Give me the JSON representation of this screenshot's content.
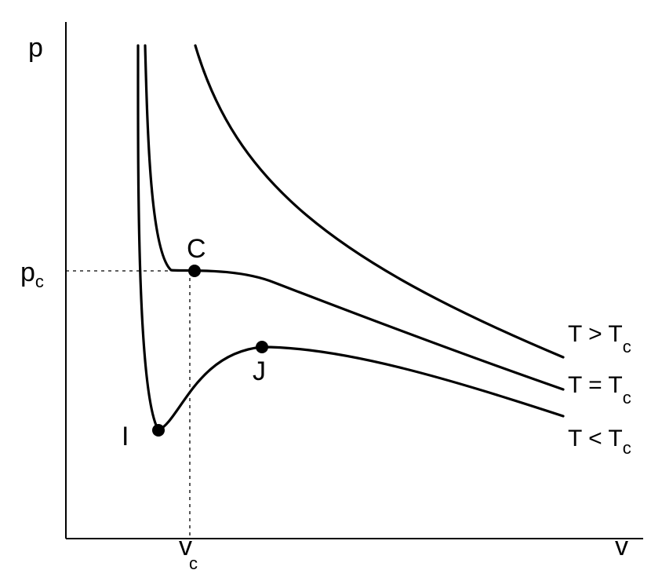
{
  "axes": {
    "y_label": "p",
    "x_label": "v",
    "pc_main": "p",
    "pc_sub": "c",
    "vc_main": "v",
    "vc_sub": "c"
  },
  "points": {
    "critical": "C",
    "minimum": "I",
    "maximum": "J"
  },
  "curves": {
    "above": {
      "main": "T > T",
      "sub": "c"
    },
    "critical": {
      "main": "T = T",
      "sub": "c"
    },
    "below": {
      "main": "T < T",
      "sub": "c"
    }
  },
  "colors": {
    "ink": "#000000",
    "background": "#ffffff"
  }
}
